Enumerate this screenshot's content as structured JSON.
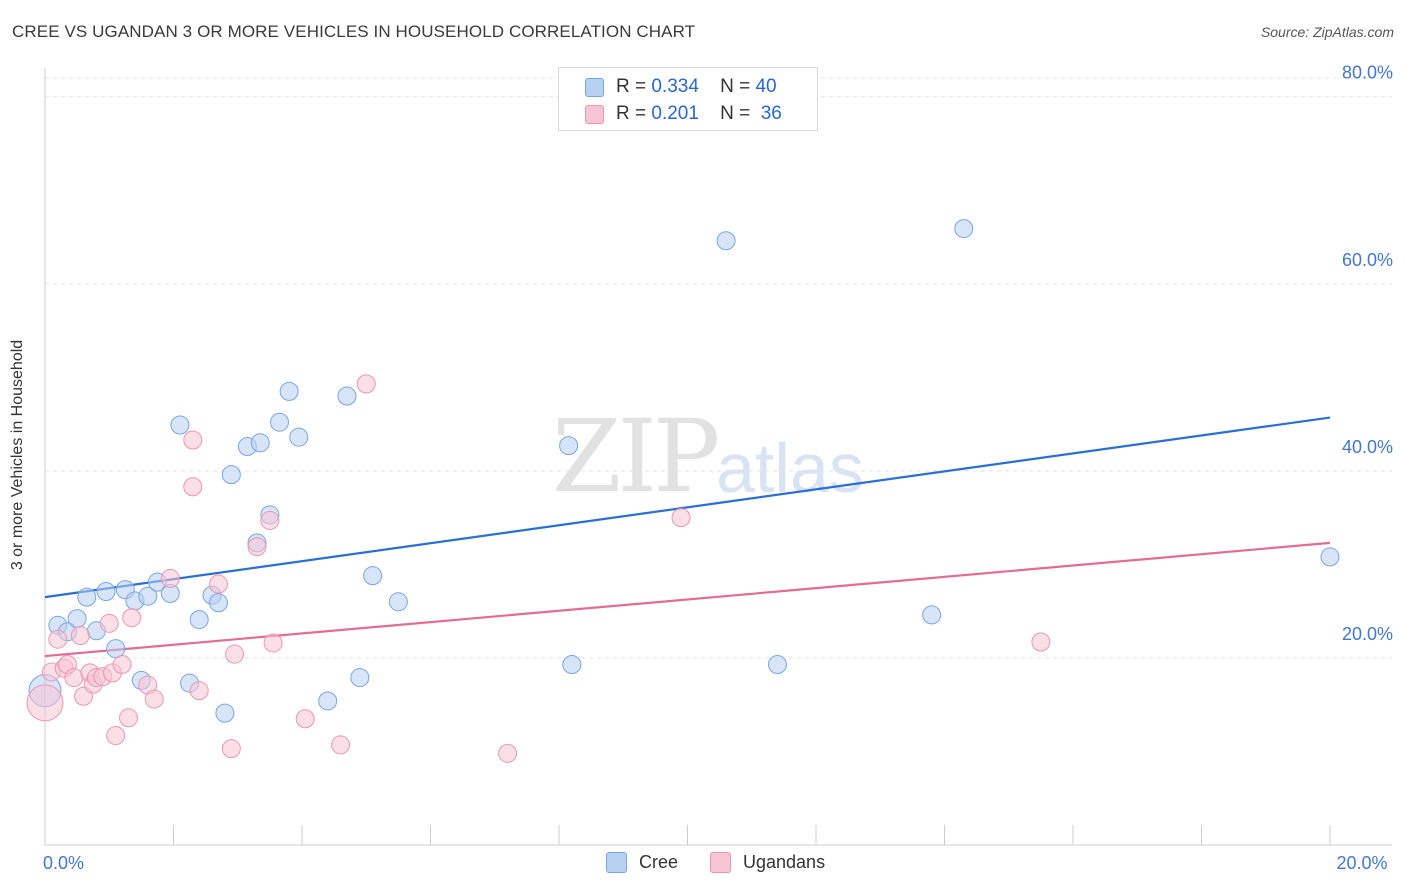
{
  "header": {
    "title": "CREE VS UGANDAN 3 OR MORE VEHICLES IN HOUSEHOLD CORRELATION CHART",
    "source": "Source: ZipAtlas.com"
  },
  "watermark": {
    "zip": "ZIP",
    "atlas": "atlas"
  },
  "legend": {
    "rows": [
      {
        "r_label": "R =",
        "r_value": "0.334",
        "n_label": "N =",
        "n_value": "40"
      },
      {
        "r_label": "R =",
        "r_value": "0.201",
        "n_label": "N =",
        "n_value": "36"
      }
    ]
  },
  "bottom_legend": {
    "cree": "Cree",
    "ugandans": "Ugandans"
  },
  "colors": {
    "cree_fill": "#b8d0f2",
    "cree_stroke": "#7aa5e0",
    "cree_line": "#2a6fd6",
    "ugandan_fill": "#f7c4d4",
    "ugandan_stroke": "#eb96b2",
    "ugandan_line": "#e56b97",
    "tick": "#4477cc"
  },
  "chart_data": {
    "type": "scatter",
    "title": "CREE VS UGANDAN 3 OR MORE VEHICLES IN HOUSEHOLD CORRELATION CHART",
    "xlabel": "",
    "ylabel": "3 or more Vehicles in Household",
    "xlim": [
      0,
      20
    ],
    "ylim": [
      0,
      82
    ],
    "x_ticks": [
      {
        "value": 0,
        "label": "0.0%"
      },
      {
        "value": 20,
        "label": "20.0%"
      }
    ],
    "y_ticks": [
      {
        "value": 20,
        "label": "20.0%"
      },
      {
        "value": 40,
        "label": "40.0%"
      },
      {
        "value": 60,
        "label": "60.0%"
      },
      {
        "value": 80,
        "label": "80.0%"
      }
    ],
    "grid": true,
    "legend_position": "top-center",
    "series": [
      {
        "name": "Cree",
        "trend": [
          [
            0,
            26.5
          ],
          [
            20,
            45.7
          ]
        ],
        "points": [
          [
            0.0,
            16.5,
            16
          ],
          [
            0.2,
            23.5,
            9
          ],
          [
            0.35,
            22.8,
            9
          ],
          [
            0.5,
            24.2,
            9
          ],
          [
            0.65,
            26.5,
            9
          ],
          [
            0.8,
            22.9,
            9
          ],
          [
            0.95,
            27.1,
            9
          ],
          [
            1.1,
            21.0,
            9
          ],
          [
            1.25,
            27.3,
            9
          ],
          [
            1.4,
            26.1,
            9
          ],
          [
            1.5,
            17.6,
            9
          ],
          [
            1.6,
            26.6,
            9
          ],
          [
            1.75,
            28.1,
            9
          ],
          [
            1.95,
            26.9,
            9
          ],
          [
            2.1,
            44.9,
            9
          ],
          [
            2.25,
            17.3,
            9
          ],
          [
            2.4,
            24.1,
            9
          ],
          [
            2.6,
            26.7,
            9
          ],
          [
            2.7,
            25.9,
            9
          ],
          [
            2.8,
            14.1,
            9
          ],
          [
            2.9,
            39.6,
            9
          ],
          [
            3.15,
            42.6,
            9
          ],
          [
            3.3,
            32.3,
            9
          ],
          [
            3.35,
            43.0,
            9
          ],
          [
            3.5,
            35.3,
            9
          ],
          [
            3.65,
            45.2,
            9
          ],
          [
            3.8,
            48.5,
            9
          ],
          [
            3.95,
            43.6,
            9
          ],
          [
            4.4,
            15.4,
            9
          ],
          [
            4.7,
            48.0,
            9
          ],
          [
            4.9,
            17.9,
            9
          ],
          [
            5.1,
            28.8,
            9
          ],
          [
            5.5,
            26.0,
            9
          ],
          [
            8.2,
            19.3,
            9
          ],
          [
            10.6,
            64.6,
            9
          ],
          [
            11.4,
            19.3,
            9
          ],
          [
            13.8,
            24.6,
            9
          ],
          [
            14.3,
            65.9,
            9
          ],
          [
            20.0,
            30.8,
            9
          ],
          [
            8.15,
            42.7,
            9
          ]
        ]
      },
      {
        "name": "Ugandans",
        "trend": [
          [
            0,
            20.2
          ],
          [
            20,
            32.3
          ]
        ],
        "points": [
          [
            0.0,
            15.2,
            18
          ],
          [
            0.1,
            18.5,
            9
          ],
          [
            0.2,
            22.0,
            9
          ],
          [
            0.3,
            18.9,
            9
          ],
          [
            0.35,
            19.3,
            9
          ],
          [
            0.45,
            17.9,
            9
          ],
          [
            0.55,
            22.4,
            9
          ],
          [
            0.6,
            15.9,
            9
          ],
          [
            0.7,
            18.4,
            9
          ],
          [
            0.75,
            17.2,
            9
          ],
          [
            0.8,
            17.9,
            9
          ],
          [
            0.9,
            18.0,
            9
          ],
          [
            1.0,
            23.7,
            9
          ],
          [
            1.05,
            18.4,
            9
          ],
          [
            1.1,
            11.7,
            9
          ],
          [
            1.2,
            19.3,
            9
          ],
          [
            1.3,
            13.6,
            9
          ],
          [
            1.35,
            24.3,
            9
          ],
          [
            1.6,
            17.1,
            9
          ],
          [
            1.7,
            15.6,
            9
          ],
          [
            1.95,
            28.5,
            9
          ],
          [
            2.3,
            43.3,
            9
          ],
          [
            2.3,
            38.3,
            9
          ],
          [
            2.4,
            16.5,
            9
          ],
          [
            2.7,
            27.9,
            9
          ],
          [
            2.9,
            10.3,
            9
          ],
          [
            2.95,
            20.4,
            9
          ],
          [
            3.3,
            31.9,
            9
          ],
          [
            3.5,
            34.7,
            9
          ],
          [
            3.55,
            21.6,
            9
          ],
          [
            4.05,
            13.5,
            9
          ],
          [
            4.6,
            10.7,
            9
          ],
          [
            5.0,
            49.3,
            9
          ],
          [
            7.2,
            9.8,
            9
          ],
          [
            9.9,
            35.0,
            9
          ],
          [
            15.5,
            21.7,
            9
          ]
        ]
      }
    ]
  }
}
